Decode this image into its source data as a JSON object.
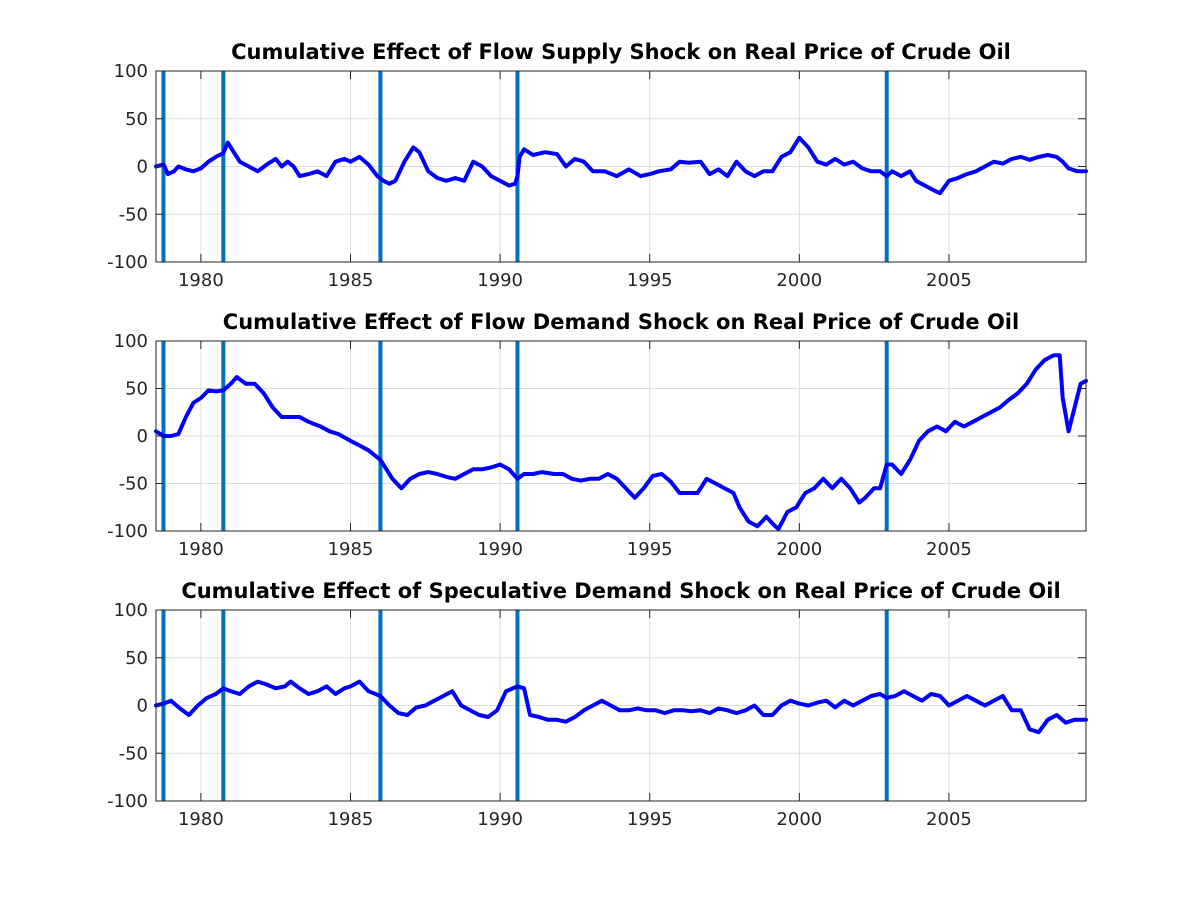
{
  "colors": {
    "series": "#0000ff",
    "event_line": "#0072bd",
    "axes": "#262626",
    "grid": "#dddddd"
  },
  "chart_data": [
    {
      "type": "line",
      "title": "Cumulative Effect of Flow Supply Shock on Real Price of Crude Oil",
      "xlim": [
        1978.5,
        2009.58
      ],
      "ylim": [
        -100,
        100
      ],
      "xticks": [
        1980,
        1985,
        1990,
        1995,
        2000,
        2005
      ],
      "yticks": [
        100,
        50,
        0,
        -50,
        -100
      ],
      "grid": true,
      "vlines": [
        1978.75,
        1980.75,
        1986.0,
        1990.58,
        2002.92
      ],
      "series": [
        {
          "x": [
            1978.5,
            1978.75,
            1978.9,
            1979.1,
            1979.25,
            1979.5,
            1979.75,
            1980.0,
            1980.25,
            1980.5,
            1980.75,
            1980.9,
            1981.1,
            1981.3,
            1981.6,
            1981.9,
            1982.2,
            1982.5,
            1982.7,
            1982.9,
            1983.1,
            1983.3,
            1983.6,
            1983.9,
            1984.2,
            1984.5,
            1984.8,
            1985.0,
            1985.3,
            1985.6,
            1985.9,
            1986.1,
            1986.3,
            1986.5,
            1986.8,
            1987.1,
            1987.3,
            1987.6,
            1987.9,
            1988.2,
            1988.5,
            1988.8,
            1989.1,
            1989.4,
            1989.7,
            1990.0,
            1990.3,
            1990.5,
            1990.58,
            1990.65,
            1990.8,
            1991.1,
            1991.5,
            1991.9,
            1992.2,
            1992.5,
            1992.8,
            1993.1,
            1993.5,
            1993.9,
            1994.3,
            1994.7,
            1995.0,
            1995.3,
            1995.7,
            1996.0,
            1996.3,
            1996.7,
            1997.0,
            1997.3,
            1997.6,
            1997.9,
            1998.2,
            1998.5,
            1998.8,
            1999.1,
            1999.4,
            1999.7,
            2000.0,
            2000.3,
            2000.6,
            2000.9,
            2001.2,
            2001.5,
            2001.8,
            2002.1,
            2002.4,
            2002.7,
            2002.92,
            2003.1,
            2003.4,
            2003.7,
            2003.9,
            2004.2,
            2004.5,
            2004.7,
            2005.0,
            2005.3,
            2005.6,
            2005.9,
            2006.2,
            2006.5,
            2006.8,
            2007.1,
            2007.4,
            2007.7,
            2008.0,
            2008.3,
            2008.6,
            2008.8,
            2009.0,
            2009.3,
            2009.58
          ],
          "y": [
            0,
            2,
            -8,
            -5,
            0,
            -3,
            -5,
            -2,
            5,
            10,
            14,
            25,
            15,
            5,
            0,
            -5,
            2,
            8,
            0,
            5,
            0,
            -10,
            -8,
            -5,
            -10,
            5,
            8,
            5,
            10,
            2,
            -10,
            -15,
            -18,
            -15,
            5,
            20,
            15,
            -5,
            -12,
            -15,
            -12,
            -15,
            5,
            0,
            -10,
            -15,
            -20,
            -18,
            -10,
            10,
            18,
            12,
            15,
            13,
            0,
            8,
            5,
            -5,
            -5,
            -10,
            -3,
            -10,
            -8,
            -5,
            -3,
            5,
            4,
            5,
            -8,
            -3,
            -10,
            5,
            -5,
            -10,
            -5,
            -5,
            10,
            15,
            30,
            20,
            5,
            2,
            8,
            2,
            5,
            -2,
            -5,
            -5,
            -10,
            -5,
            -10,
            -5,
            -15,
            -20,
            -25,
            -28,
            -15,
            -12,
            -8,
            -5,
            0,
            5,
            3,
            8,
            10,
            7,
            10,
            12,
            10,
            5,
            -2,
            -5,
            -5
          ]
        }
      ]
    },
    {
      "type": "line",
      "title": "Cumulative Effect of Flow Demand Shock on Real Price of Crude Oil",
      "xlim": [
        1978.5,
        2009.58
      ],
      "ylim": [
        -100,
        100
      ],
      "xticks": [
        1980,
        1985,
        1990,
        1995,
        2000,
        2005
      ],
      "yticks": [
        100,
        50,
        0,
        -50,
        -100
      ],
      "grid": true,
      "vlines": [
        1978.75,
        1980.75,
        1986.0,
        1990.58,
        2002.92
      ],
      "series": [
        {
          "x": [
            1978.5,
            1978.75,
            1979.0,
            1979.25,
            1979.5,
            1979.75,
            1980.0,
            1980.25,
            1980.5,
            1980.75,
            1981.0,
            1981.2,
            1981.5,
            1981.8,
            1982.1,
            1982.4,
            1982.7,
            1983.0,
            1983.3,
            1983.6,
            1984.0,
            1984.3,
            1984.6,
            1985.0,
            1985.3,
            1985.6,
            1986.0,
            1986.2,
            1986.4,
            1986.7,
            1987.0,
            1987.3,
            1987.6,
            1987.9,
            1988.2,
            1988.5,
            1988.8,
            1989.1,
            1989.4,
            1989.7,
            1990.0,
            1990.3,
            1990.58,
            1990.8,
            1991.1,
            1991.4,
            1991.8,
            1992.1,
            1992.4,
            1992.7,
            1993.0,
            1993.3,
            1993.6,
            1993.9,
            1994.2,
            1994.5,
            1994.8,
            1995.1,
            1995.4,
            1995.7,
            1996.0,
            1996.3,
            1996.6,
            1996.9,
            1997.2,
            1997.5,
            1997.8,
            1998.0,
            1998.3,
            1998.6,
            1998.9,
            1999.1,
            1999.3,
            1999.6,
            1999.9,
            2000.2,
            2000.5,
            2000.8,
            2001.1,
            2001.4,
            2001.7,
            2002.0,
            2002.2,
            2002.5,
            2002.7,
            2002.92,
            2003.1,
            2003.4,
            2003.7,
            2004.0,
            2004.3,
            2004.6,
            2004.9,
            2005.2,
            2005.5,
            2005.8,
            2006.1,
            2006.4,
            2006.7,
            2007.0,
            2007.3,
            2007.6,
            2007.9,
            2008.2,
            2008.5,
            2008.7,
            2008.8,
            2009.0,
            2009.2,
            2009.4,
            2009.58
          ],
          "y": [
            5,
            0,
            0,
            2,
            20,
            35,
            40,
            48,
            47,
            48,
            55,
            62,
            55,
            55,
            45,
            30,
            20,
            20,
            20,
            15,
            10,
            5,
            2,
            -5,
            -10,
            -15,
            -25,
            -35,
            -45,
            -55,
            -45,
            -40,
            -38,
            -40,
            -43,
            -45,
            -40,
            -35,
            -35,
            -33,
            -30,
            -35,
            -45,
            -40,
            -40,
            -38,
            -40,
            -40,
            -45,
            -47,
            -45,
            -45,
            -40,
            -45,
            -55,
            -65,
            -55,
            -42,
            -40,
            -48,
            -60,
            -60,
            -60,
            -45,
            -50,
            -55,
            -60,
            -75,
            -90,
            -95,
            -85,
            -92,
            -98,
            -80,
            -75,
            -60,
            -55,
            -45,
            -55,
            -45,
            -55,
            -70,
            -65,
            -55,
            -55,
            -30,
            -30,
            -40,
            -25,
            -5,
            5,
            10,
            5,
            15,
            10,
            15,
            20,
            25,
            30,
            38,
            45,
            55,
            70,
            80,
            85,
            85,
            40,
            5,
            30,
            55,
            58
          ]
        }
      ]
    },
    {
      "type": "line",
      "title": "Cumulative Effect of Speculative Demand Shock on Real Price of Crude Oil",
      "xlim": [
        1978.5,
        2009.58
      ],
      "ylim": [
        -100,
        100
      ],
      "xticks": [
        1980,
        1985,
        1990,
        1995,
        2000,
        2005
      ],
      "yticks": [
        100,
        50,
        0,
        -50,
        -100
      ],
      "grid": true,
      "vlines": [
        1978.75,
        1980.75,
        1986.0,
        1990.58,
        2002.92
      ],
      "series": [
        {
          "x": [
            1978.5,
            1978.75,
            1979.0,
            1979.3,
            1979.6,
            1979.9,
            1980.2,
            1980.5,
            1980.75,
            1981.0,
            1981.3,
            1981.6,
            1981.9,
            1982.2,
            1982.5,
            1982.8,
            1983.0,
            1983.3,
            1983.6,
            1983.9,
            1984.2,
            1984.5,
            1984.8,
            1985.0,
            1985.3,
            1985.6,
            1986.0,
            1986.3,
            1986.6,
            1986.9,
            1987.2,
            1987.5,
            1987.8,
            1988.1,
            1988.4,
            1988.7,
            1989.0,
            1989.3,
            1989.6,
            1989.9,
            1990.2,
            1990.58,
            1990.8,
            1991.0,
            1991.3,
            1991.6,
            1991.9,
            1992.2,
            1992.5,
            1992.8,
            1993.1,
            1993.4,
            1993.7,
            1994.0,
            1994.3,
            1994.6,
            1994.9,
            1995.2,
            1995.5,
            1995.8,
            1996.1,
            1996.4,
            1996.7,
            1997.0,
            1997.3,
            1997.6,
            1997.9,
            1998.2,
            1998.5,
            1998.8,
            1999.1,
            1999.4,
            1999.7,
            2000.0,
            2000.3,
            2000.6,
            2000.9,
            2001.2,
            2001.5,
            2001.8,
            2002.1,
            2002.4,
            2002.7,
            2002.92,
            2003.2,
            2003.5,
            2003.8,
            2004.1,
            2004.4,
            2004.7,
            2005.0,
            2005.3,
            2005.6,
            2005.9,
            2006.2,
            2006.5,
            2006.8,
            2007.1,
            2007.4,
            2007.7,
            2008.0,
            2008.3,
            2008.6,
            2008.9,
            2009.2,
            2009.58
          ],
          "y": [
            0,
            2,
            5,
            -3,
            -10,
            0,
            8,
            12,
            18,
            15,
            12,
            20,
            25,
            22,
            18,
            20,
            25,
            18,
            12,
            15,
            20,
            12,
            18,
            20,
            25,
            15,
            10,
            0,
            -8,
            -10,
            -2,
            0,
            5,
            10,
            15,
            0,
            -5,
            -10,
            -12,
            -5,
            15,
            20,
            18,
            -10,
            -12,
            -15,
            -15,
            -17,
            -12,
            -5,
            0,
            5,
            0,
            -5,
            -5,
            -3,
            -5,
            -5,
            -8,
            -5,
            -5,
            -6,
            -5,
            -8,
            -3,
            -5,
            -8,
            -5,
            0,
            -10,
            -10,
            0,
            5,
            2,
            0,
            3,
            5,
            -2,
            5,
            0,
            5,
            10,
            12,
            8,
            10,
            15,
            10,
            5,
            12,
            10,
            0,
            5,
            10,
            5,
            0,
            5,
            10,
            -5,
            -5,
            -25,
            -28,
            -15,
            -10,
            -18,
            -15,
            -15
          ]
        }
      ]
    }
  ]
}
